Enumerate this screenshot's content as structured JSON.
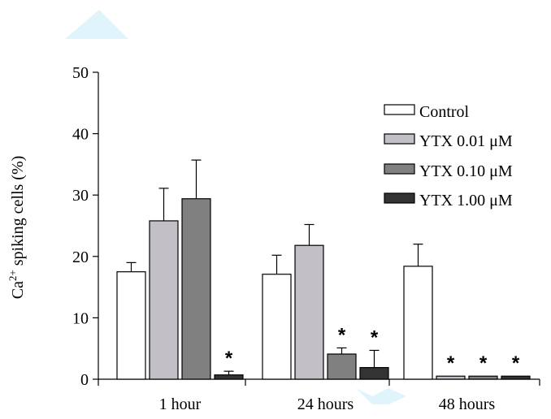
{
  "chart_data": {
    "type": "bar",
    "title": "",
    "xlabel": "",
    "ylabel": "Ca²⁺ spiking cells (%)",
    "ylabel_parts": [
      "Ca",
      "2+",
      " spiking cells (%)"
    ],
    "ylim": [
      0,
      50
    ],
    "yticks": [
      "0",
      "10",
      "20",
      "30",
      "40",
      "50"
    ],
    "categories": [
      "1 hour",
      "24 hours",
      "48 hours"
    ],
    "legend_position": "top-right",
    "significance_marker": "*",
    "series": [
      {
        "name": "Control",
        "color": "#ffffff",
        "values": [
          17.5,
          17.1,
          18.4
        ],
        "errors": [
          1.5,
          3.1,
          3.6
        ],
        "significant": [
          false,
          false,
          false
        ]
      },
      {
        "name": "YTX 0.01 μM",
        "color": "#c2c0c6",
        "values": [
          25.8,
          21.8,
          0.5
        ],
        "errors": [
          5.3,
          3.4,
          0
        ],
        "significant": [
          false,
          false,
          true
        ]
      },
      {
        "name": "YTX 0.10 μM",
        "color": "#808080",
        "values": [
          29.4,
          4.1,
          0.5
        ],
        "errors": [
          6.3,
          1.0,
          0
        ],
        "significant": [
          false,
          true,
          true
        ]
      },
      {
        "name": "YTX 1.00 μM",
        "color": "#333333",
        "values": [
          0.7,
          1.9,
          0.5
        ],
        "errors": [
          0.6,
          2.8,
          0
        ],
        "significant": [
          true,
          true,
          true
        ]
      }
    ]
  }
}
